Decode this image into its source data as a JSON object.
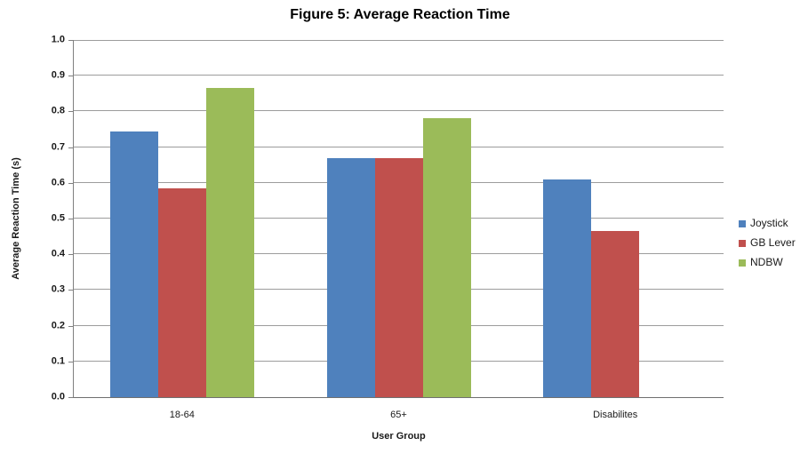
{
  "title": "Figure 5: Average Reaction Time",
  "chart_data": {
    "type": "bar",
    "title": "Figure 5: Average Reaction Time",
    "categories": [
      "18-64",
      "65+",
      "Disabilites"
    ],
    "series": [
      {
        "name": "Joystick",
        "color": "#4F81BD",
        "values": [
          0.745,
          0.67,
          0.61
        ]
      },
      {
        "name": "GB Lever",
        "color": "#C0504D",
        "values": [
          0.585,
          0.67,
          0.465
        ]
      },
      {
        "name": "NDBW",
        "color": "#9BBB59",
        "values": [
          0.865,
          0.78,
          null
        ]
      }
    ],
    "xlabel": "User Group",
    "ylabel": "Average Reaction Time (s)",
    "ylim": [
      0.0,
      1.0
    ],
    "ytick_step": 0.1,
    "ytick_format_decimals": 1,
    "grid": true,
    "legend_position": "right",
    "colors": {
      "gridline": "#9c9c9c",
      "axis": "#808080",
      "text": "#1a1a1a"
    }
  }
}
